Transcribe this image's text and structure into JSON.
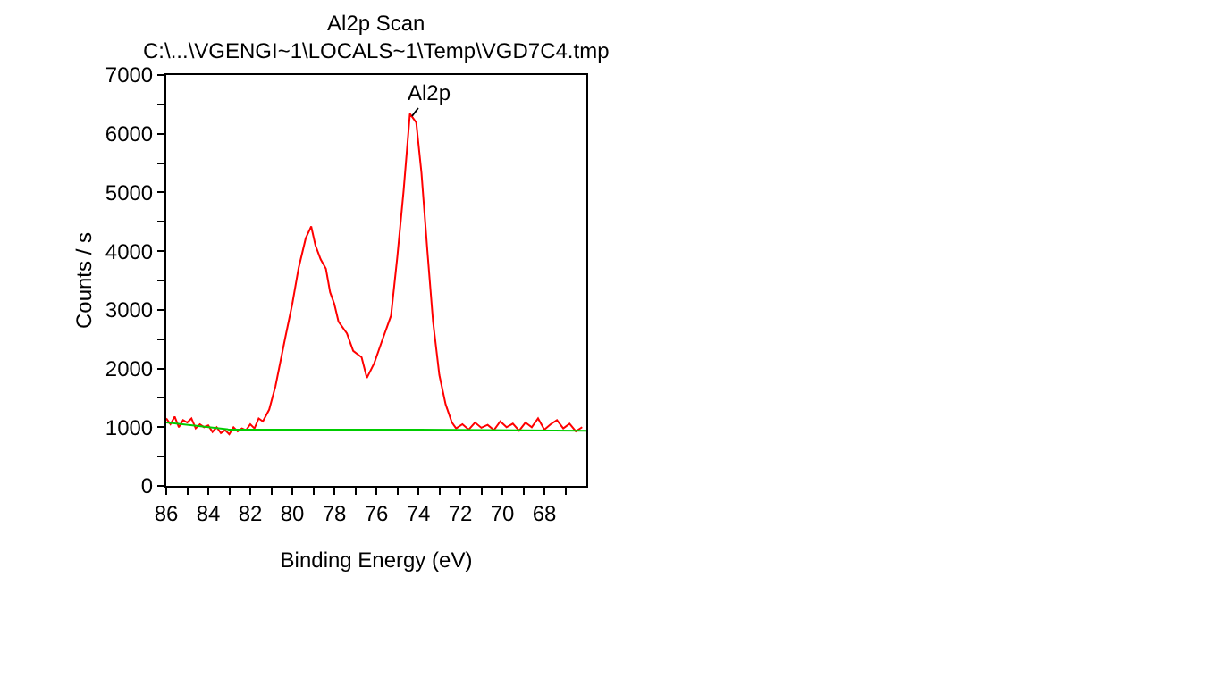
{
  "chart_data": {
    "type": "line",
    "title": "Al2p Scan",
    "subtitle": "C:\\...\\VGENGI~1\\LOCALS~1\\Temp\\VGD7C4.tmp",
    "xlabel": "Binding Energy (eV)",
    "ylabel": "Counts / s",
    "xlim": [
      86,
      66
    ],
    "ylim": [
      0,
      7000
    ],
    "xticks": [
      86,
      {
        "value": 85,
        "label": null
      },
      84,
      {
        "value": 83,
        "label": null
      },
      82,
      {
        "value": 81,
        "label": null
      },
      80,
      {
        "value": 79,
        "label": null
      },
      78,
      {
        "value": 77,
        "label": null
      },
      76,
      {
        "value": 75,
        "label": null
      },
      74,
      {
        "value": 73,
        "label": null
      },
      72,
      {
        "value": 71,
        "label": null
      },
      70,
      {
        "value": 69,
        "label": null
      },
      68,
      {
        "value": 67,
        "label": null
      }
    ],
    "yticks": [
      0,
      {
        "value": 500,
        "label": null
      },
      1000,
      {
        "value": 1500,
        "label": null
      },
      2000,
      {
        "value": 2500,
        "label": null
      },
      3000,
      {
        "value": 3500,
        "label": null
      },
      4000,
      {
        "value": 4500,
        "label": null
      },
      5000,
      {
        "value": 5500,
        "label": null
      },
      6000,
      {
        "value": 6500,
        "label": null
      },
      7000
    ],
    "marker": "none",
    "line_style": "solid",
    "annotations": [
      {
        "text": "Al2p",
        "x": 74.3,
        "y": 6300
      }
    ],
    "series": [
      {
        "color": "#ff0000",
        "x": [
          86,
          85.8,
          85.6,
          85.4,
          85.2,
          85.0,
          84.8,
          84.6,
          84.4,
          84.2,
          84.0,
          83.8,
          83.6,
          83.4,
          83.2,
          83.0,
          82.8,
          82.6,
          82.4,
          82.2,
          82.0,
          81.8,
          81.6,
          81.4,
          81.1,
          80.8,
          80.35,
          80.0,
          79.7,
          79.36,
          79.1,
          78.9,
          78.65,
          78.4,
          78.2,
          78.0,
          77.8,
          77.4,
          77.1,
          76.7,
          76.45,
          76.1,
          75.7,
          75.3,
          75.0,
          74.7,
          74.4,
          74.1,
          73.85,
          73.57,
          73.3,
          73.0,
          72.7,
          72.4,
          72.2,
          71.9,
          71.6,
          71.3,
          71.0,
          70.7,
          70.4,
          70.1,
          69.8,
          69.5,
          69.2,
          68.9,
          68.6,
          68.3,
          68.0,
          67.7,
          67.4,
          67.1,
          66.8,
          66.5,
          66.2
        ],
        "values": [
          1150,
          1050,
          1180,
          1000,
          1120,
          1080,
          1150,
          980,
          1050,
          1000,
          1030,
          920,
          1000,
          900,
          950,
          880,
          1000,
          930,
          980,
          950,
          1050,
          980,
          1150,
          1100,
          1300,
          1700,
          2500,
          3100,
          3710,
          4220,
          4420,
          4100,
          3860,
          3700,
          3300,
          3100,
          2800,
          2600,
          2300,
          2190,
          1840,
          2090,
          2500,
          2900,
          3900,
          5030,
          6340,
          6190,
          5330,
          4010,
          2800,
          1890,
          1390,
          1080,
          980,
          1050,
          960,
          1080,
          990,
          1040,
          950,
          1100,
          1000,
          1060,
          940,
          1080,
          1000,
          1150,
          960,
          1050,
          1120,
          980,
          1060,
          930,
          1000
        ]
      },
      {
        "color": "#00cc00",
        "x": [
          86,
          83,
          82,
          74,
          66
        ],
        "values": [
          1080,
          960,
          960,
          960,
          940
        ]
      }
    ]
  }
}
